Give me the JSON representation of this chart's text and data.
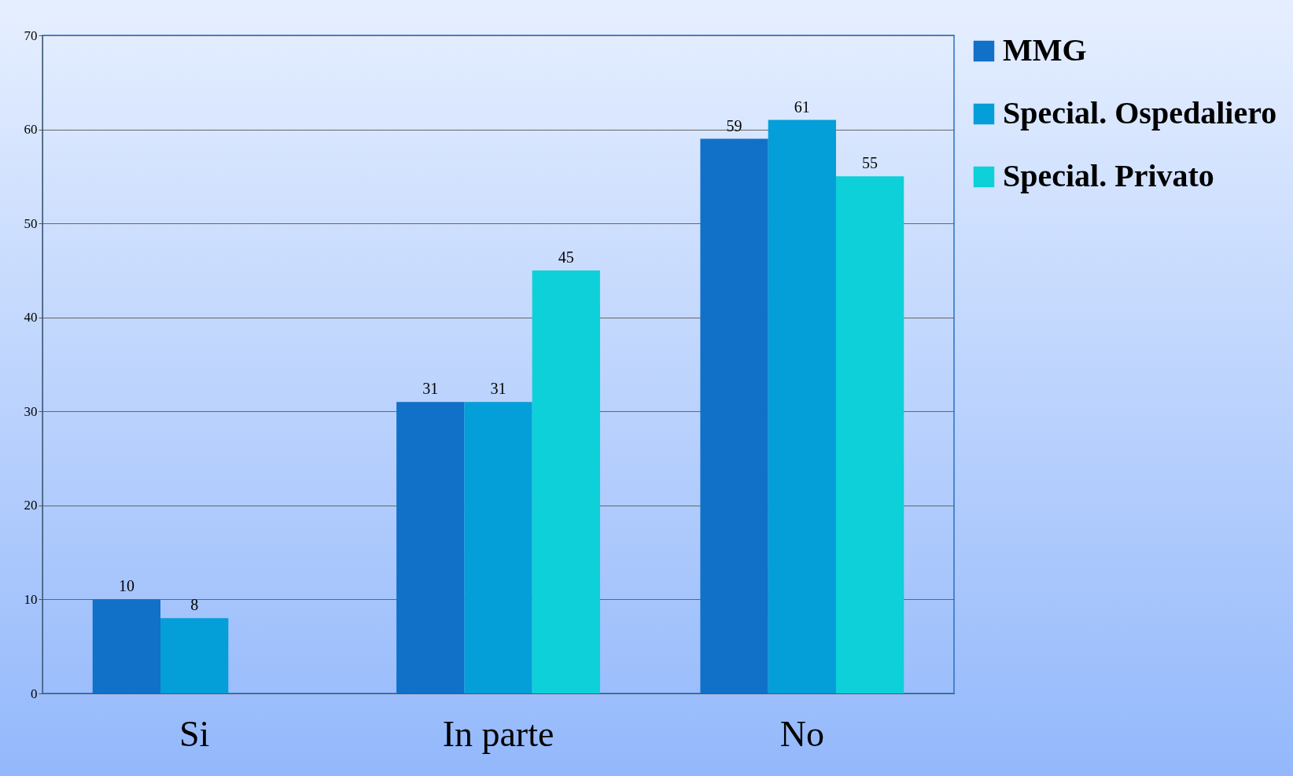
{
  "chart_data": {
    "type": "bar",
    "categories": [
      "Si",
      "In parte",
      "No"
    ],
    "series": [
      {
        "name": "MMG",
        "color": "#1170c8",
        "values": [
          10,
          31,
          59
        ]
      },
      {
        "name": "Special. Ospedaliero",
        "color": "#049ed8",
        "values": [
          8,
          31,
          61
        ]
      },
      {
        "name": "Special. Privato",
        "color": "#0dd0d8",
        "values": [
          null,
          45,
          55
        ]
      }
    ],
    "ylim": [
      0,
      70
    ],
    "yticks": [
      0,
      10,
      20,
      30,
      40,
      50,
      60,
      70
    ],
    "grid": "y",
    "legend": "right",
    "data_labels": true
  }
}
